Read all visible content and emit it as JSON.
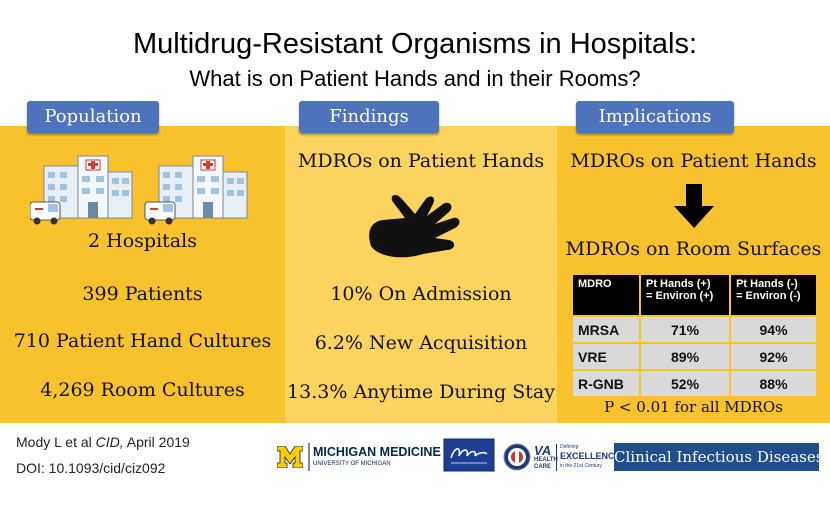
{
  "header": {
    "title": "Multidrug-Resistant Organisms in Hospitals:",
    "subtitle": "What is on Patient Hands and in their Rooms?"
  },
  "population": {
    "heading": "Population",
    "icon": "hospital-icon",
    "stats": [
      "2  Hospitals",
      "399  Patients",
      "710  Patient Hand Cultures",
      "4,269  Room Cultures"
    ]
  },
  "findings": {
    "heading": "Findings",
    "subheading": "MDROs on Patient Hands",
    "icon": "hand-icon",
    "stats": [
      "10% On Admission",
      "6.2% New Acquisition",
      "13.3% Anytime During Stay"
    ]
  },
  "implications": {
    "heading": "Implications",
    "from": "MDROs on Patient Hands",
    "to": "MDROs on Room Surfaces",
    "table": {
      "headers": [
        "MDRO",
        "Pt Hands (+)\n= Environ (+)",
        "Pt Hands (-)\n= Environ (-)"
      ],
      "rows": [
        [
          "MRSA",
          "71%",
          "94%"
        ],
        [
          "VRE",
          "89%",
          "92%"
        ],
        [
          "R-GNB",
          "52%",
          "88%"
        ]
      ]
    },
    "note": "P < 0.01 for all MDROs"
  },
  "footer": {
    "citation_prefix": "Mody L et al ",
    "citation_journal": "CID,",
    "citation_date": " April 2019",
    "doi": "DOI: 10.1093/cid/ciz092",
    "logos": {
      "michigan_title": "MICHIGAN MEDICINE",
      "michigan_sub": "UNIVERSITY OF MICHIGAN",
      "va_title": "VA",
      "va_sub1": "HEALTH",
      "va_sub2": "CARE",
      "va_tag1": "Defining",
      "va_tag2": "EXCELLENCE",
      "va_tag3": "in the 21st Century",
      "journal": "Clinical Infectious Diseases"
    }
  },
  "colors": {
    "panel_yellow": "#f8c22e",
    "panel_light": "#fbd35e",
    "heading_blue": "#4d73bd",
    "journal_blue": "#1f4e8c"
  }
}
